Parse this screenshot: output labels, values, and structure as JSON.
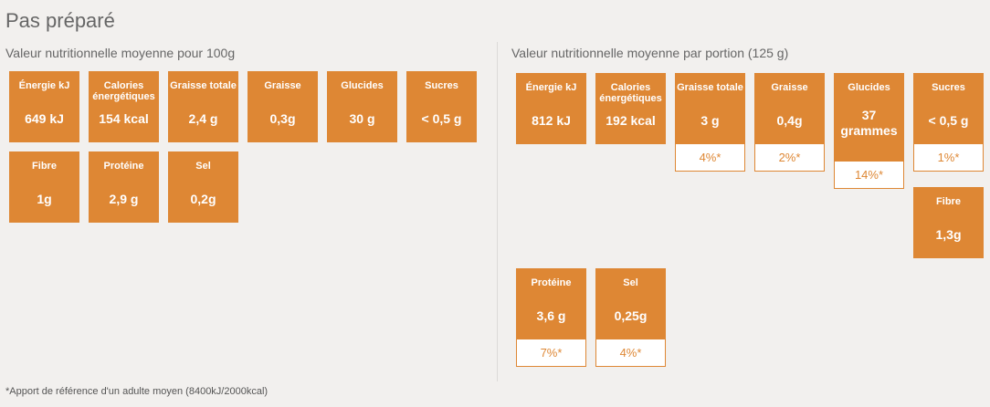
{
  "title": "Pas préparé",
  "per100": {
    "heading": "Valeur nutritionnelle moyenne pour 100g",
    "items": [
      {
        "label": "Énergie kJ",
        "value": "649 kJ"
      },
      {
        "label": "Calories énergétiques",
        "value": "154 kcal"
      },
      {
        "label": "Graisse totale",
        "value": "2,4 g"
      },
      {
        "label": "Graisse",
        "value": "0,3g"
      },
      {
        "label": "Glucides",
        "value": "30 g"
      },
      {
        "label": "Sucres",
        "value": "< 0,5 g"
      },
      {
        "label": "Fibre",
        "value": "1g"
      },
      {
        "label": "Protéine",
        "value": "2,9 g"
      },
      {
        "label": "Sel",
        "value": "0,2g"
      }
    ]
  },
  "perPortion": {
    "heading": "Valeur nutritionnelle moyenne par portion (125 g)",
    "items": [
      {
        "label": "Énergie kJ",
        "value": "812 kJ",
        "pct": ""
      },
      {
        "label": "Calories énergétiques",
        "value": "192 kcal",
        "pct": ""
      },
      {
        "label": "Graisse totale",
        "value": "3 g",
        "pct": "4%*"
      },
      {
        "label": "Graisse",
        "value": "0,4g",
        "pct": "2%*"
      },
      {
        "label": "Glucides",
        "value": "37 grammes",
        "pct": "14%*"
      },
      {
        "label": "Sucres",
        "value": "< 0,5 g",
        "pct": "1%*"
      },
      {
        "label": "Fibre",
        "value": "1,3g",
        "pct": ""
      },
      {
        "label": "Protéine",
        "value": "3,6 g",
        "pct": "7%*"
      },
      {
        "label": "Sel",
        "value": "0,25g",
        "pct": "4%*"
      }
    ]
  },
  "footnote": "*Apport de référence d'un adulte moyen (8400kJ/2000kcal)",
  "colors": {
    "accent": "#de8734",
    "background": "#f2f0ee"
  }
}
